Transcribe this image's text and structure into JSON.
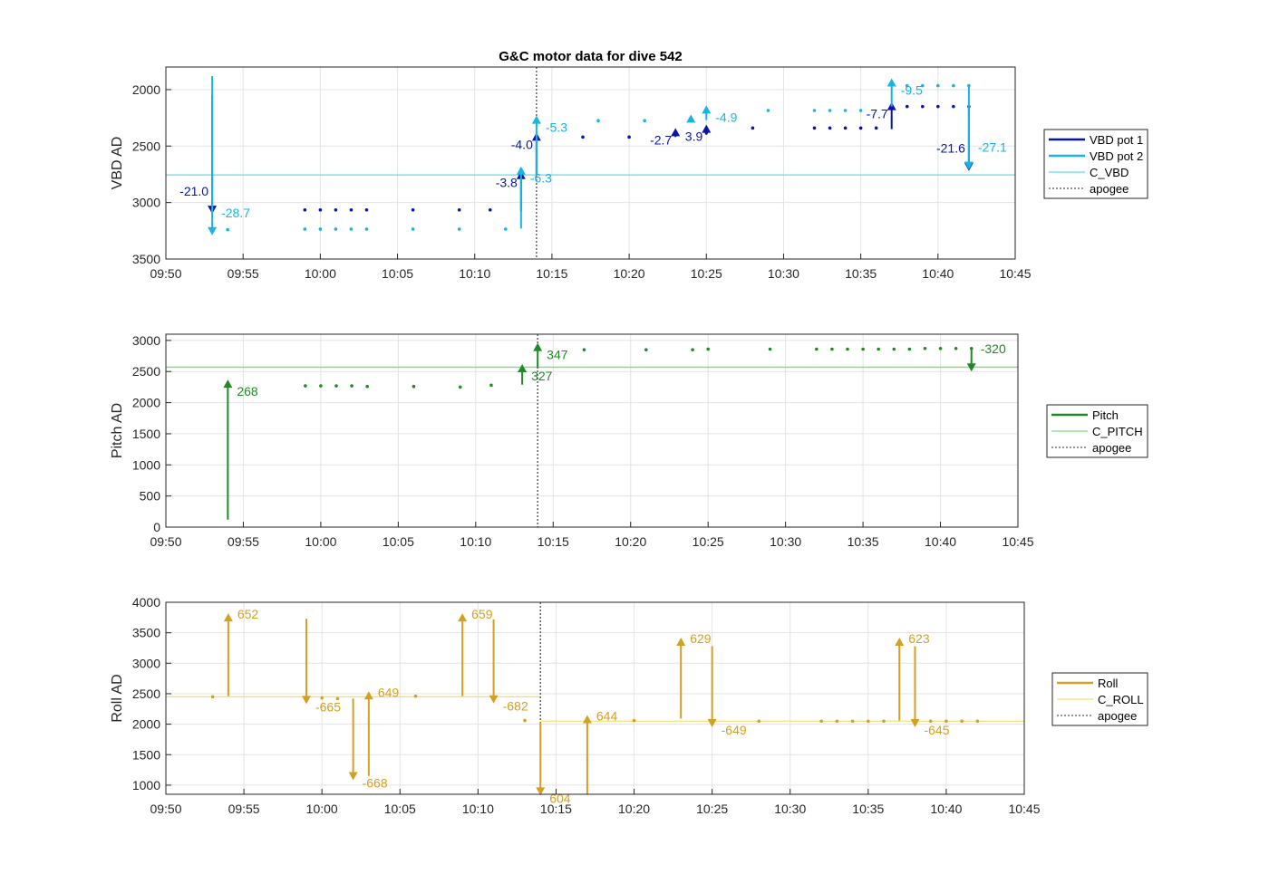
{
  "colors": {
    "vbd1": "#0a14a8",
    "vbd2": "#18b4e4",
    "c_vbd": "#67dbe6",
    "pitch": "#1f8a25",
    "c_pitch": "#7fdd7f",
    "roll": "#d4a020",
    "c_roll": "#f0e27a",
    "apogee": "#555555",
    "grid": "#e3e3e3",
    "axis": "#262626"
  },
  "chart_data": [
    {
      "type": "scatter",
      "title": "G&C motor data for dive 542",
      "xlabel": "",
      "ylabel": "VBD AD",
      "xlim": [
        "09:50",
        "10:45"
      ],
      "ylim": [
        3500,
        1800
      ],
      "y_reversed": true,
      "x_ticks": [
        "09:50",
        "09:55",
        "10:00",
        "10:05",
        "10:10",
        "10:15",
        "10:20",
        "10:25",
        "10:30",
        "10:35",
        "10:40",
        "10:45"
      ],
      "y_ticks": [
        2000,
        2500,
        3000,
        3500
      ],
      "grid": true,
      "legend_position": "right",
      "apogee": "10:14",
      "constant_lines": [
        {
          "name": "C_VBD",
          "value": 2755,
          "color_key": "c_vbd"
        }
      ],
      "legend": [
        {
          "label": "VBD pot 1",
          "style": "line",
          "color_key": "vbd1"
        },
        {
          "label": "VBD pot 2",
          "style": "line",
          "color_key": "vbd2"
        },
        {
          "label": "C_VBD",
          "style": "thin",
          "color_key": "c_vbd"
        },
        {
          "label": "apogee",
          "style": "dotted",
          "color_key": "apogee"
        }
      ],
      "series": [
        {
          "name": "VBD pot 1",
          "color_key": "vbd1",
          "points": [
            [
              "09:53",
              3050
            ],
            [
              "09:59",
              3065
            ],
            [
              "10:00",
              3065
            ],
            [
              "10:01",
              3065
            ],
            [
              "10:02",
              3065
            ],
            [
              "10:03",
              3065
            ],
            [
              "10:06",
              3065
            ],
            [
              "10:09",
              3065
            ],
            [
              "10:11",
              3065
            ],
            [
              "10:17",
              2420
            ],
            [
              "10:20",
              2420
            ],
            [
              "10:23",
              2395
            ],
            [
              "10:25",
              2380
            ],
            [
              "10:28",
              2340
            ],
            [
              "10:32",
              2340
            ],
            [
              "10:33",
              2340
            ],
            [
              "10:34",
              2340
            ],
            [
              "10:35",
              2340
            ],
            [
              "10:36",
              2340
            ],
            [
              "10:38",
              2150
            ],
            [
              "10:39",
              2150
            ],
            [
              "10:40",
              2150
            ],
            [
              "10:41",
              2150
            ],
            [
              "10:42",
              2150
            ]
          ],
          "arrows": [
            {
              "x": "09:53",
              "y0": 2050,
              "y1": 3100,
              "label": "-21.0",
              "label_side": "left"
            },
            {
              "x": "10:13",
              "y0": 3080,
              "y1": 2720,
              "label": "-3.8",
              "label_side": "left"
            },
            {
              "x": "10:14",
              "y0": 2750,
              "y1": 2380,
              "label": "-4.0",
              "label_side": "left"
            },
            {
              "x": "10:23",
              "y0": 2420,
              "y1": 2340,
              "label": "-2.7",
              "label_side": "left"
            },
            {
              "x": "10:25",
              "y0": 2400,
              "y1": 2310,
              "label": "3.9",
              "label_side": "left"
            },
            {
              "x": "10:37",
              "y0": 2350,
              "y1": 2110,
              "label": "-7.7",
              "label_side": "left"
            },
            {
              "x": "10:42",
              "y0": 2160,
              "y1": 2720,
              "label": "-21.6",
              "label_side": "left"
            }
          ]
        },
        {
          "name": "VBD pot 2",
          "color_key": "vbd2",
          "points": [
            [
              "09:54",
              3240
            ],
            [
              "09:59",
              3235
            ],
            [
              "10:00",
              3235
            ],
            [
              "10:01",
              3235
            ],
            [
              "10:02",
              3235
            ],
            [
              "10:03",
              3235
            ],
            [
              "10:06",
              3235
            ],
            [
              "10:09",
              3235
            ],
            [
              "10:12",
              3235
            ],
            [
              "10:18",
              2275
            ],
            [
              "10:21",
              2275
            ],
            [
              "10:29",
              2185
            ],
            [
              "10:32",
              2185
            ],
            [
              "10:33",
              2185
            ],
            [
              "10:34",
              2185
            ],
            [
              "10:35",
              2185
            ],
            [
              "10:38",
              1965
            ],
            [
              "10:39",
              1965
            ],
            [
              "10:40",
              1965
            ],
            [
              "10:41",
              1965
            ],
            [
              "10:42",
              1965
            ]
          ],
          "arrows": [
            {
              "x": "09:53",
              "y0": 1880,
              "y1": 3290,
              "label": "-28.7",
              "label_side": "right"
            },
            {
              "x": "10:13",
              "y0": 3230,
              "y1": 2680,
              "label": "-6.3",
              "label_side": "right"
            },
            {
              "x": "10:14",
              "y0": 2760,
              "y1": 2230,
              "label": "-5.3",
              "label_side": "right"
            },
            {
              "x": "10:24",
              "y0": 2290,
              "y1": 2220,
              "label": "",
              "label_side": "right"
            },
            {
              "x": "10:25",
              "y0": 2270,
              "y1": 2140,
              "label": "-4.9",
              "label_side": "right"
            },
            {
              "x": "10:37",
              "y0": 2150,
              "y1": 1900,
              "label": "-9.5",
              "label_side": "right"
            },
            {
              "x": "10:42",
              "y0": 1960,
              "y1": 2710,
              "label": "-27.1",
              "label_side": "right"
            }
          ]
        }
      ]
    },
    {
      "type": "scatter",
      "title": "",
      "xlabel": "",
      "ylabel": "Pitch AD",
      "xlim": [
        "09:50",
        "10:45"
      ],
      "ylim": [
        0,
        3100
      ],
      "y_reversed": false,
      "x_ticks": [
        "09:50",
        "09:55",
        "10:00",
        "10:05",
        "10:10",
        "10:15",
        "10:20",
        "10:25",
        "10:30",
        "10:35",
        "10:40",
        "10:45"
      ],
      "y_ticks": [
        0,
        500,
        1000,
        1500,
        2000,
        2500,
        3000
      ],
      "grid": true,
      "legend_position": "right",
      "apogee": "10:14",
      "constant_lines": [
        {
          "name": "C_PITCH",
          "value": 2570,
          "color_key": "c_pitch"
        }
      ],
      "legend": [
        {
          "label": "Pitch",
          "style": "line",
          "color_key": "pitch"
        },
        {
          "label": "C_PITCH",
          "style": "thin",
          "color_key": "c_pitch"
        },
        {
          "label": "apogee",
          "style": "dotted",
          "color_key": "apogee"
        }
      ],
      "series": [
        {
          "name": "Pitch",
          "color_key": "pitch",
          "points": [
            [
              "09:59",
              2270
            ],
            [
              "10:00",
              2270
            ],
            [
              "10:01",
              2270
            ],
            [
              "10:02",
              2270
            ],
            [
              "10:03",
              2260
            ],
            [
              "10:06",
              2260
            ],
            [
              "10:09",
              2250
            ],
            [
              "10:11",
              2280
            ],
            [
              "10:17",
              2850
            ],
            [
              "10:21",
              2850
            ],
            [
              "10:24",
              2850
            ],
            [
              "10:25",
              2860
            ],
            [
              "10:29",
              2860
            ],
            [
              "10:32",
              2860
            ],
            [
              "10:33",
              2860
            ],
            [
              "10:34",
              2860
            ],
            [
              "10:35",
              2860
            ],
            [
              "10:36",
              2860
            ],
            [
              "10:37",
              2860
            ],
            [
              "10:38",
              2860
            ],
            [
              "10:39",
              2870
            ],
            [
              "10:40",
              2870
            ],
            [
              "10:41",
              2870
            ],
            [
              "10:42",
              2870
            ]
          ],
          "arrows": [
            {
              "x": "09:54",
              "y0": 120,
              "y1": 2370,
              "label": "268",
              "label_side": "right"
            },
            {
              "x": "10:13",
              "y0": 2290,
              "y1": 2620,
              "label": "327",
              "label_side": "right"
            },
            {
              "x": "10:14",
              "y0": 2560,
              "y1": 2960,
              "label": "347",
              "label_side": "right"
            },
            {
              "x": "10:42",
              "y0": 2870,
              "y1": 2500,
              "label": "-320",
              "label_side": "right"
            }
          ]
        }
      ]
    },
    {
      "type": "scatter",
      "title": "",
      "xlabel": "",
      "ylabel": "Roll AD",
      "xlim": [
        "09:50",
        "10:45"
      ],
      "ylim": [
        850,
        4000
      ],
      "y_reversed": false,
      "x_ticks": [
        "09:50",
        "09:55",
        "10:00",
        "10:05",
        "10:10",
        "10:15",
        "10:20",
        "10:25",
        "10:30",
        "10:35",
        "10:40",
        "10:45"
      ],
      "y_ticks": [
        1000,
        1500,
        2000,
        2500,
        3000,
        3500,
        4000
      ],
      "grid": true,
      "legend_position": "right",
      "apogee": "10:14",
      "constant_lines": [
        {
          "name": "C_ROLL",
          "value": 2450,
          "color_key": "c_roll",
          "x_from": "09:50",
          "x_to": "10:14"
        },
        {
          "name": "C_ROLL",
          "value": 2050,
          "color_key": "c_roll",
          "x_from": "10:14",
          "x_to": "10:45"
        }
      ],
      "legend": [
        {
          "label": "Roll",
          "style": "line",
          "color_key": "roll"
        },
        {
          "label": "C_ROLL",
          "style": "thin",
          "color_key": "c_roll"
        },
        {
          "label": "apogee",
          "style": "dotted",
          "color_key": "apogee"
        }
      ],
      "series": [
        {
          "name": "Roll",
          "color_key": "roll",
          "points": [
            [
              "09:53",
              2450
            ],
            [
              "10:00",
              2430
            ],
            [
              "10:01",
              2420
            ],
            [
              "10:06",
              2460
            ],
            [
              "10:13",
              2060
            ],
            [
              "10:20",
              2060
            ],
            [
              "10:28",
              2050
            ],
            [
              "10:32",
              2050
            ],
            [
              "10:33",
              2050
            ],
            [
              "10:34",
              2050
            ],
            [
              "10:35",
              2050
            ],
            [
              "10:36",
              2050
            ],
            [
              "10:39",
              2050
            ],
            [
              "10:40",
              2050
            ],
            [
              "10:41",
              2050
            ],
            [
              "10:42",
              2050
            ]
          ],
          "arrows": [
            {
              "x": "09:54",
              "y0": 2460,
              "y1": 3820,
              "label": "652",
              "label_side": "right",
              "label_at": "end"
            },
            {
              "x": "09:59",
              "y0": 3730,
              "y1": 2330,
              "label": "-665",
              "label_side": "right",
              "label_at": "end"
            },
            {
              "x": "10:02",
              "y0": 2420,
              "y1": 1080,
              "label": "-668",
              "label_side": "right",
              "label_at": "end"
            },
            {
              "x": "10:03",
              "y0": 1150,
              "y1": 2540,
              "label": "649",
              "label_side": "right",
              "label_at": "end"
            },
            {
              "x": "10:09",
              "y0": 2460,
              "y1": 3820,
              "label": "659",
              "label_side": "right",
              "label_at": "end"
            },
            {
              "x": "10:11",
              "y0": 3720,
              "y1": 2340,
              "label": "-682",
              "label_side": "right",
              "label_at": "end"
            },
            {
              "x": "10:14",
              "y0": 2030,
              "y1": 830,
              "label": "604",
              "label_side": "right",
              "label_at": "end"
            },
            {
              "x": "10:17",
              "y0": 850,
              "y1": 2150,
              "label": "644",
              "label_side": "right",
              "label_at": "end"
            },
            {
              "x": "10:23",
              "y0": 2090,
              "y1": 3420,
              "label": "629",
              "label_side": "right",
              "label_at": "end"
            },
            {
              "x": "10:25",
              "y0": 3280,
              "y1": 1950,
              "label": "-649",
              "label_side": "right",
              "label_at": "end"
            },
            {
              "x": "10:37",
              "y0": 2060,
              "y1": 3420,
              "label": "623",
              "label_side": "right",
              "label_at": "end"
            },
            {
              "x": "10:38",
              "y0": 3280,
              "y1": 1950,
              "label": "-645",
              "label_side": "right",
              "label_at": "end"
            }
          ]
        }
      ]
    }
  ]
}
